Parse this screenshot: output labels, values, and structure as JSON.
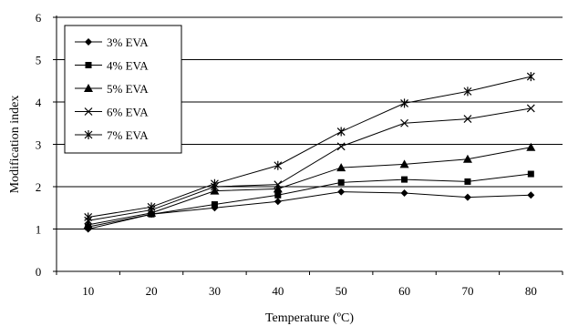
{
  "chart_data": {
    "type": "line",
    "title": "",
    "xlabel": "Temperature (ºC)",
    "ylabel": "Modification index",
    "x": [
      10,
      20,
      30,
      40,
      50,
      60,
      70,
      80
    ],
    "xlim": [
      5,
      85
    ],
    "ylim": [
      0,
      6
    ],
    "yticks": [
      0,
      1,
      2,
      3,
      4,
      5,
      6
    ],
    "grid": "horizontal",
    "legend_position": "top-left",
    "series": [
      {
        "name": "3% EVA",
        "marker": "diamond",
        "values": [
          1.0,
          1.35,
          1.5,
          1.65,
          1.88,
          1.85,
          1.75,
          1.8
        ]
      },
      {
        "name": "4% EVA",
        "marker": "square",
        "values": [
          1.05,
          1.35,
          1.58,
          1.8,
          2.1,
          2.17,
          2.12,
          2.3
        ]
      },
      {
        "name": "5% EVA",
        "marker": "triangle",
        "values": [
          1.1,
          1.38,
          1.9,
          1.95,
          2.45,
          2.53,
          2.65,
          2.93
        ]
      },
      {
        "name": "6% EVA",
        "marker": "x",
        "values": [
          1.2,
          1.45,
          2.0,
          2.05,
          2.95,
          3.5,
          3.6,
          3.85
        ]
      },
      {
        "name": "7% EVA",
        "marker": "asterisk",
        "values": [
          1.28,
          1.52,
          2.07,
          2.5,
          3.3,
          3.97,
          4.25,
          4.6
        ]
      }
    ],
    "line_color": "#000000"
  }
}
